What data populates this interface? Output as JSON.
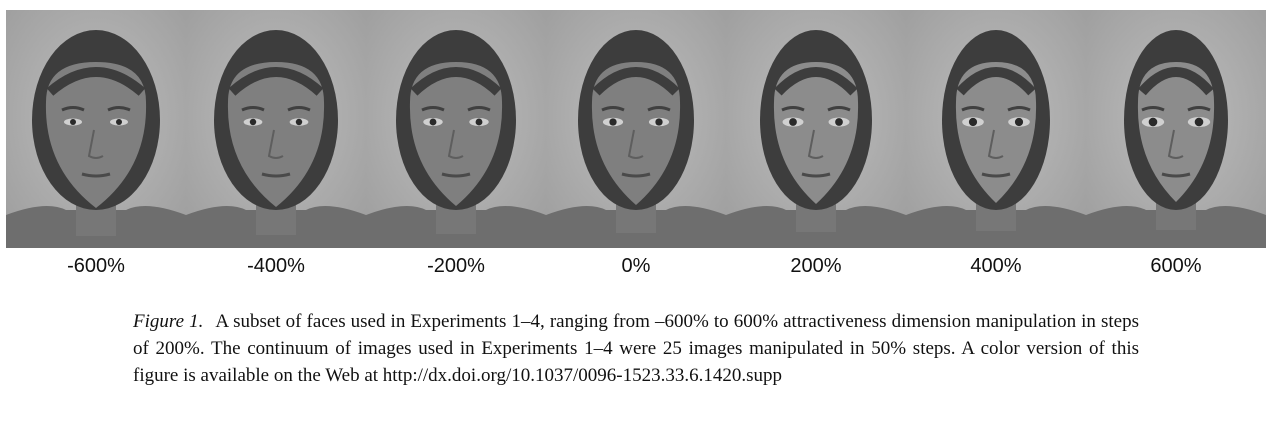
{
  "figure": {
    "faces": [
      {
        "label": "-600%",
        "manipulation_percent": -600
      },
      {
        "label": "-400%",
        "manipulation_percent": -400
      },
      {
        "label": "-200%",
        "manipulation_percent": -200
      },
      {
        "label": "0%",
        "manipulation_percent": 0
      },
      {
        "label": "200%",
        "manipulation_percent": 200
      },
      {
        "label": "400%",
        "manipulation_percent": 400
      },
      {
        "label": "600%",
        "manipulation_percent": 600
      }
    ],
    "caption": {
      "label": "Figure 1.",
      "text": "A subset of faces used in Experiments 1–4, ranging from –600% to 600% attractiveness dimension manipulation in steps of 200%. The continuum of images used in Experiments 1–4 were 25 images manipulated in 50% steps. A color version of this figure is available on the Web at http://dx.doi.org/10.1037/0096-1523.33.6.1420.supp"
    }
  }
}
